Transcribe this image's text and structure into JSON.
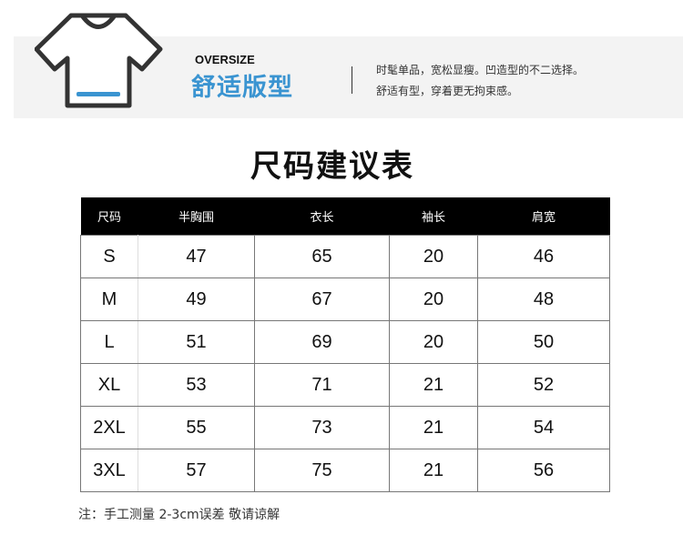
{
  "banner": {
    "subtitle_en": "OVERSIZE",
    "title_cn": "舒适版型",
    "desc_line1": "时髦单品，宽松显瘦。凹造型的不二选择。",
    "desc_line2": "舒适有型，穿着更无拘束感。",
    "accent": "#3a94d1",
    "icon": "t-shirt-icon"
  },
  "title": "尺码建议表",
  "table": {
    "headers": [
      "尺码",
      "半胸围",
      "衣长",
      "袖长",
      "肩宽"
    ],
    "rows": [
      [
        "S",
        "47",
        "65",
        "20",
        "46"
      ],
      [
        "M",
        "49",
        "67",
        "20",
        "48"
      ],
      [
        "L",
        "51",
        "69",
        "20",
        "50"
      ],
      [
        "XL",
        "53",
        "71",
        "21",
        "52"
      ],
      [
        "2XL",
        "55",
        "73",
        "21",
        "54"
      ],
      [
        "3XL",
        "57",
        "75",
        "21",
        "56"
      ]
    ]
  },
  "note": "注：手工测量 2-3cm误差 敬请谅解"
}
